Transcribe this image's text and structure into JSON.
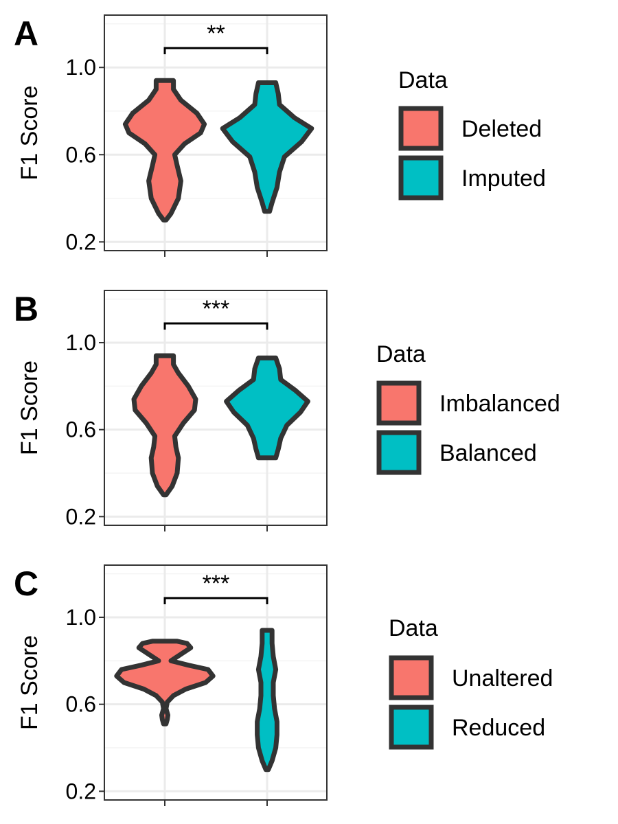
{
  "colors": {
    "first": "#F8766D",
    "second": "#00BFC4",
    "outline": "#333333",
    "grid_major": "#EBEBEB",
    "grid_minor": "#F4F4F4",
    "panel_border": "#333333"
  },
  "chart_data": [
    {
      "type": "violin",
      "panel_label": "A",
      "ylabel": "F1 Score",
      "yticks": [
        0.2,
        0.6,
        1.0
      ],
      "ylim": [
        0.16,
        1.24
      ],
      "significance": "**",
      "legend": {
        "title": "Data",
        "entries": [
          "Deleted",
          "Imputed"
        ],
        "placement": "right"
      },
      "series": [
        {
          "name": "Deleted",
          "color": "#F8766D",
          "profile": [
            [
              0.3,
              0.01
            ],
            [
              0.33,
              0.05
            ],
            [
              0.4,
              0.11
            ],
            [
              0.48,
              0.13
            ],
            [
              0.55,
              0.1
            ],
            [
              0.6,
              0.08
            ],
            [
              0.65,
              0.16
            ],
            [
              0.7,
              0.29
            ],
            [
              0.74,
              0.32
            ],
            [
              0.79,
              0.26
            ],
            [
              0.85,
              0.13
            ],
            [
              0.9,
              0.07
            ],
            [
              0.94,
              0.07
            ]
          ]
        },
        {
          "name": "Imputed",
          "color": "#00BFC4",
          "profile": [
            [
              0.34,
              0.02
            ],
            [
              0.38,
              0.04
            ],
            [
              0.45,
              0.08
            ],
            [
              0.52,
              0.1
            ],
            [
              0.59,
              0.14
            ],
            [
              0.66,
              0.28
            ],
            [
              0.72,
              0.36
            ],
            [
              0.77,
              0.22
            ],
            [
              0.83,
              0.1
            ],
            [
              0.88,
              0.09
            ],
            [
              0.93,
              0.07
            ]
          ]
        }
      ]
    },
    {
      "type": "violin",
      "panel_label": "B",
      "ylabel": "F1 Score",
      "yticks": [
        0.2,
        0.6,
        1.0
      ],
      "ylim": [
        0.16,
        1.24
      ],
      "significance": "***",
      "legend": {
        "title": "Data",
        "entries": [
          "Imbalanced",
          "Balanced"
        ],
        "placement": "right"
      },
      "series": [
        {
          "name": "Imbalanced",
          "color": "#F8766D",
          "profile": [
            [
              0.3,
              0.01
            ],
            [
              0.34,
              0.06
            ],
            [
              0.4,
              0.1
            ],
            [
              0.47,
              0.11
            ],
            [
              0.52,
              0.09
            ],
            [
              0.57,
              0.08
            ],
            [
              0.63,
              0.15
            ],
            [
              0.69,
              0.24
            ],
            [
              0.74,
              0.25
            ],
            [
              0.8,
              0.19
            ],
            [
              0.86,
              0.11
            ],
            [
              0.9,
              0.07
            ],
            [
              0.94,
              0.07
            ]
          ]
        },
        {
          "name": "Balanced",
          "color": "#00BFC4",
          "profile": [
            [
              0.47,
              0.07
            ],
            [
              0.51,
              0.09
            ],
            [
              0.56,
              0.11
            ],
            [
              0.62,
              0.16
            ],
            [
              0.68,
              0.27
            ],
            [
              0.73,
              0.33
            ],
            [
              0.78,
              0.23
            ],
            [
              0.83,
              0.11
            ],
            [
              0.88,
              0.1
            ],
            [
              0.93,
              0.07
            ]
          ]
        }
      ]
    },
    {
      "type": "violin",
      "panel_label": "C",
      "ylabel": "F1 Score",
      "yticks": [
        0.2,
        0.6,
        1.0
      ],
      "ylim": [
        0.16,
        1.24
      ],
      "significance": "***",
      "legend": {
        "title": "Data",
        "entries": [
          "Unaltered",
          "Reduced"
        ],
        "placement": "right"
      },
      "series": [
        {
          "name": "Unaltered",
          "color": "#F8766D",
          "profile": [
            [
              0.51,
              0.01
            ],
            [
              0.53,
              0.02
            ],
            [
              0.55,
              0.025
            ],
            [
              0.58,
              0.01
            ],
            [
              0.61,
              0.02
            ],
            [
              0.64,
              0.07
            ],
            [
              0.67,
              0.17
            ],
            [
              0.7,
              0.33
            ],
            [
              0.73,
              0.39
            ],
            [
              0.76,
              0.35
            ],
            [
              0.78,
              0.19
            ],
            [
              0.8,
              0.05
            ],
            [
              0.83,
              0.13
            ],
            [
              0.86,
              0.21
            ],
            [
              0.88,
              0.18
            ],
            [
              0.89,
              0.1
            ]
          ]
        },
        {
          "name": "Reduced",
          "color": "#00BFC4",
          "profile": [
            [
              0.3,
              0.01
            ],
            [
              0.34,
              0.04
            ],
            [
              0.4,
              0.07
            ],
            [
              0.46,
              0.08
            ],
            [
              0.52,
              0.08
            ],
            [
              0.58,
              0.06
            ],
            [
              0.64,
              0.05
            ],
            [
              0.7,
              0.05
            ],
            [
              0.76,
              0.07
            ],
            [
              0.82,
              0.05
            ],
            [
              0.88,
              0.04
            ],
            [
              0.94,
              0.04
            ]
          ]
        }
      ]
    }
  ]
}
